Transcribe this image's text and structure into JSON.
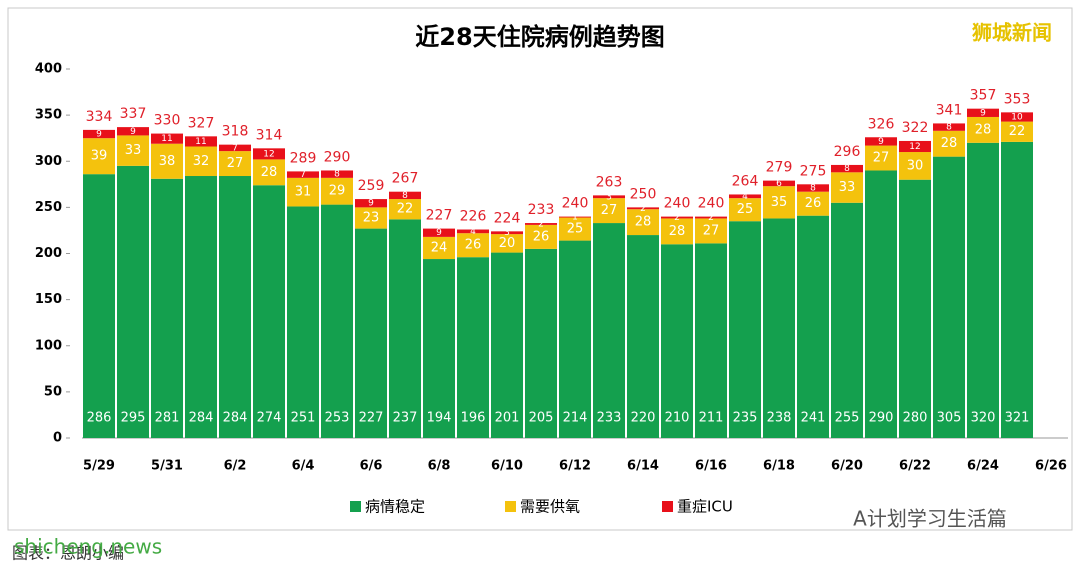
{
  "chart_data": {
    "type": "stacked_bar",
    "title": "近28天住院病例趋势图",
    "watermark": "狮城新闻",
    "footer_left": "图表：恩朗小编",
    "footer_site": "shicheng.news",
    "footer_right": "A计划学习生活篇",
    "categories": [
      "5/29",
      null,
      "5/31",
      null,
      "6/2",
      null,
      "6/4",
      null,
      "6/6",
      null,
      "6/8",
      null,
      "6/10",
      null,
      "6/12",
      null,
      "6/14",
      null,
      "6/16",
      null,
      "6/18",
      null,
      "6/20",
      null,
      "6/22",
      null,
      "6/24",
      null,
      "6/26"
    ],
    "series": [
      {
        "name": "病情稳定",
        "color": "#14a04e",
        "values": [
          286,
          295,
          281,
          284,
          284,
          274,
          251,
          253,
          227,
          237,
          194,
          196,
          201,
          205,
          214,
          233,
          220,
          210,
          211,
          235,
          238,
          241,
          255,
          290,
          280,
          305,
          320,
          321,
          null
        ]
      },
      {
        "name": "需要供氧",
        "color": "#f4c20d",
        "values": [
          39,
          33,
          38,
          32,
          27,
          28,
          31,
          29,
          23,
          22,
          24,
          26,
          20,
          26,
          25,
          27,
          28,
          28,
          27,
          25,
          35,
          26,
          33,
          27,
          30,
          28,
          28,
          22,
          null
        ]
      },
      {
        "name": "重症ICU",
        "color": "#e8101a",
        "values": [
          9,
          9,
          11,
          11,
          7,
          12,
          7,
          8,
          9,
          8,
          9,
          4,
          3,
          2,
          1,
          3,
          2,
          2,
          2,
          4,
          6,
          8,
          8,
          9,
          12,
          8,
          9,
          10,
          null
        ]
      }
    ],
    "totals": [
      334,
      337,
      330,
      327,
      318,
      314,
      289,
      290,
      259,
      267,
      227,
      226,
      224,
      233,
      240,
      263,
      250,
      240,
      240,
      264,
      279,
      275,
      296,
      326,
      322,
      341,
      357,
      353,
      null
    ],
    "ylim": [
      0,
      400
    ],
    "yticks": [
      0,
      50,
      100,
      150,
      200,
      250,
      300,
      350,
      400
    ],
    "legend": "bottom"
  }
}
